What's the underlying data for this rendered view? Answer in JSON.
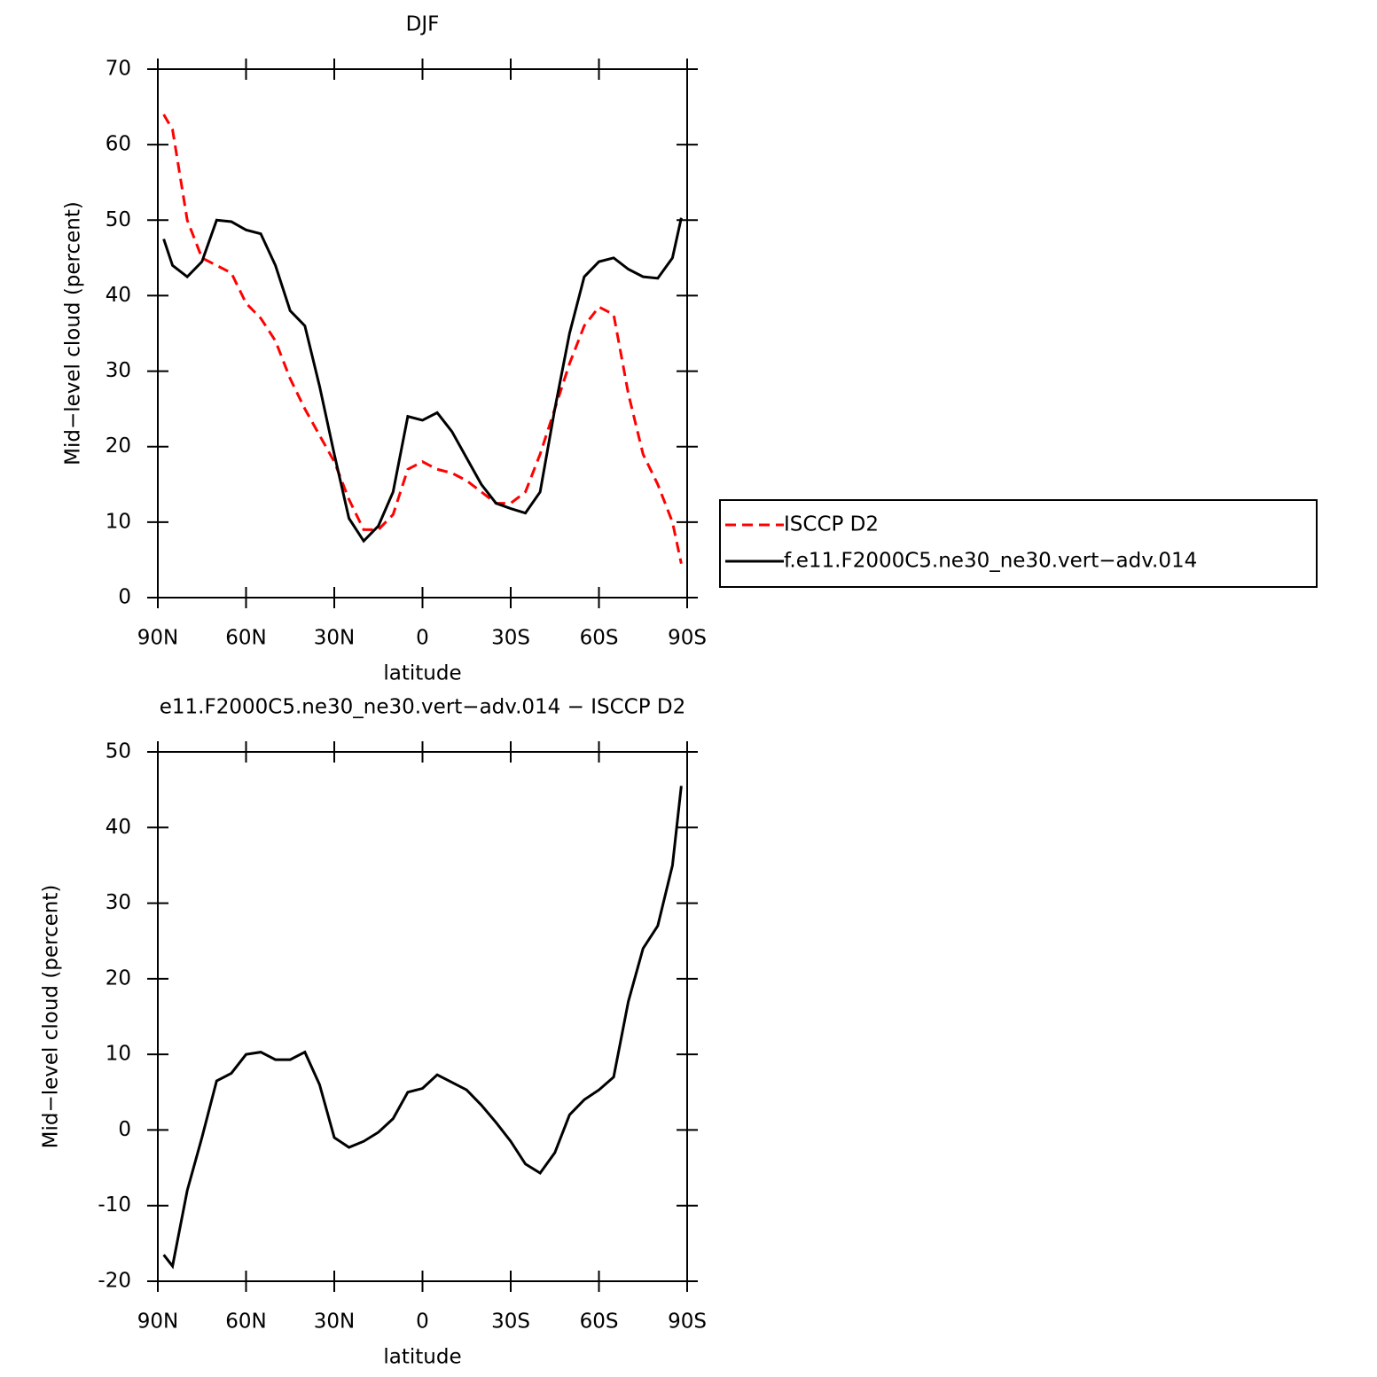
{
  "chart_data": [
    {
      "type": "line",
      "title": "DJF",
      "xlabel": "latitude",
      "ylabel": "Mid−level cloud (percent)",
      "x": [
        88,
        85,
        80,
        75,
        70,
        65,
        60,
        55,
        50,
        45,
        40,
        35,
        30,
        25,
        20,
        15,
        10,
        5,
        0,
        -5,
        -10,
        -15,
        -20,
        -25,
        -30,
        -35,
        -40,
        -45,
        -50,
        -55,
        -60,
        -65,
        -70,
        -75,
        -80,
        -85,
        -88
      ],
      "series": [
        {
          "name": "ISCCP D2",
          "color": "#ff0000",
          "dash": true,
          "values": [
            64,
            62,
            50,
            45,
            44,
            43,
            39,
            37,
            34,
            29,
            25,
            21.5,
            18,
            13,
            9,
            9,
            11,
            17,
            18,
            17,
            16.5,
            15.5,
            14,
            12.5,
            12.5,
            14,
            19,
            25,
            31,
            36,
            38.5,
            37.5,
            27,
            19,
            15,
            10,
            4.5
          ]
        },
        {
          "name": "f.e11.F2000C5.ne30_ne30.vert−adv.014",
          "color": "#000000",
          "dash": false,
          "values": [
            47.5,
            44,
            42.5,
            44.5,
            50,
            49.8,
            48.7,
            48.2,
            44,
            38,
            36,
            28,
            19,
            10.5,
            7.5,
            9.5,
            14,
            24,
            23.5,
            24.5,
            22,
            18.5,
            15,
            12.5,
            11.8,
            11.2,
            14,
            25,
            35,
            42.5,
            44.5,
            45,
            43.5,
            42.5,
            42.3,
            45,
            50.3
          ]
        }
      ],
      "xlim": [
        90,
        -90
      ],
      "xticks": [
        {
          "value": 90,
          "label": "90N"
        },
        {
          "value": 60,
          "label": "60N"
        },
        {
          "value": 30,
          "label": "30N"
        },
        0,
        {
          "value": -30,
          "label": "30S"
        },
        {
          "value": -60,
          "label": "60S"
        },
        {
          "value": -90,
          "label": "90S"
        }
      ],
      "ylim": [
        0,
        70
      ],
      "yticks": [
        0,
        10,
        20,
        30,
        40,
        50,
        60,
        70
      ],
      "legend": "right"
    },
    {
      "type": "line",
      "title": "e11.F2000C5.ne30_ne30.vert−adv.014 − ISCCP D2",
      "xlabel": "latitude",
      "ylabel": "Mid−level cloud (percent)",
      "x": [
        88,
        85,
        80,
        75,
        70,
        65,
        60,
        55,
        50,
        45,
        40,
        35,
        30,
        25,
        20,
        15,
        10,
        5,
        0,
        -5,
        -10,
        -15,
        -20,
        -25,
        -30,
        -35,
        -40,
        -45,
        -50,
        -55,
        -60,
        -65,
        -70,
        -75,
        -80,
        -85,
        -88
      ],
      "values": [
        -16.5,
        -18,
        -8,
        -1,
        6.5,
        7.5,
        10,
        10.3,
        9.3,
        9.3,
        10.3,
        6,
        -1,
        -2.3,
        -1.5,
        -0.3,
        1.5,
        5,
        5.5,
        7.3,
        6.3,
        5.3,
        3.3,
        1,
        -1.5,
        -4.5,
        -5.7,
        -3,
        2,
        4,
        5.3,
        7,
        17,
        24,
        27,
        35,
        45.5
      ],
      "color": "#000000",
      "xlim": [
        90,
        -90
      ],
      "xticks": [
        {
          "value": 90,
          "label": "90N"
        },
        {
          "value": 60,
          "label": "60N"
        },
        {
          "value": 30,
          "label": "30N"
        },
        0,
        {
          "value": -30,
          "label": "30S"
        },
        {
          "value": -60,
          "label": "60S"
        },
        {
          "value": -90,
          "label": "90S"
        }
      ],
      "ylim": [
        -20,
        50
      ],
      "yticks": [
        -20,
        -10,
        0,
        10,
        20,
        30,
        40,
        50
      ]
    }
  ]
}
